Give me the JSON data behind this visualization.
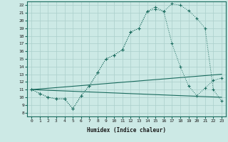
{
  "xlabel": "Humidex (Indice chaleur)",
  "xlim": [
    -0.5,
    23.5
  ],
  "ylim": [
    7.5,
    22.5
  ],
  "xticks": [
    0,
    1,
    2,
    3,
    4,
    5,
    6,
    7,
    8,
    9,
    10,
    11,
    12,
    13,
    14,
    15,
    16,
    17,
    18,
    19,
    20,
    21,
    22,
    23
  ],
  "yticks": [
    8,
    9,
    10,
    11,
    12,
    13,
    14,
    15,
    16,
    17,
    18,
    19,
    20,
    21,
    22
  ],
  "bg_color": "#cce9e5",
  "grid_color": "#aacfcb",
  "line_color": "#1a6b5e",
  "curve1_x": [
    0,
    1,
    2,
    3,
    4,
    5,
    6,
    7,
    8,
    9,
    10,
    11,
    12,
    13,
    14,
    15,
    16,
    17,
    18,
    19,
    20,
    21,
    22,
    23
  ],
  "curve1_y": [
    11,
    10.5,
    10,
    9.8,
    9.8,
    8.5,
    10.2,
    11.5,
    13.2,
    15.0,
    15.5,
    16.2,
    18.5,
    19.0,
    21.2,
    21.5,
    21.2,
    22.2,
    22.0,
    21.3,
    20.3,
    19.0,
    11.0,
    9.5
  ],
  "curve2_x": [
    0,
    1,
    2,
    3,
    4,
    5,
    6,
    7,
    8,
    9,
    10,
    11,
    12,
    13,
    14,
    15,
    16,
    17,
    18,
    19,
    20,
    21,
    22,
    23
  ],
  "curve2_y": [
    11,
    10.5,
    10,
    9.8,
    9.8,
    8.5,
    10.2,
    11.5,
    13.2,
    15.0,
    15.5,
    16.2,
    18.5,
    19.0,
    21.2,
    21.8,
    21.2,
    17.0,
    14.0,
    11.5,
    10.2,
    11.2,
    12.2,
    12.5
  ],
  "line1_x": [
    0,
    23
  ],
  "line1_y": [
    11.0,
    13.0
  ],
  "line2_x": [
    0,
    23
  ],
  "line2_y": [
    11.0,
    10.0
  ]
}
